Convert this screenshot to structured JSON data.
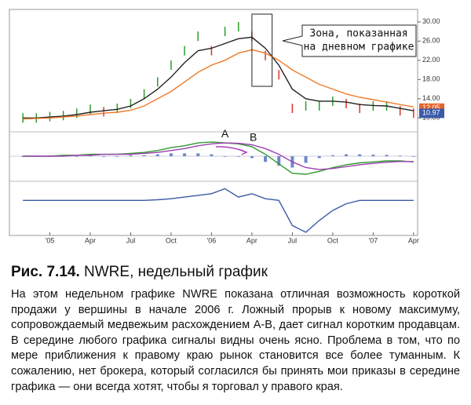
{
  "chart_data": [
    {
      "type": "line",
      "xlim": [
        -3,
        27.3
      ],
      "ylim": [
        7.6,
        32.1
      ],
      "xticks": [
        {
          "value": 0,
          "label": "'05"
        },
        {
          "value": 3,
          "label": "Apr"
        },
        {
          "value": 6,
          "label": "Jul"
        },
        {
          "value": 9,
          "label": "Oct"
        },
        {
          "value": 12,
          "label": "'06"
        },
        {
          "value": 15,
          "label": "Apr"
        },
        {
          "value": 18,
          "label": "Jul"
        },
        {
          "value": 21,
          "label": "Oct"
        },
        {
          "value": 24,
          "label": "'07"
        },
        {
          "value": 27,
          "label": "Apr"
        }
      ],
      "yticks": [
        {
          "value": 10,
          "label": "10.00"
        },
        {
          "value": 14,
          "label": "14.00"
        },
        {
          "value": 18,
          "label": "18.00"
        },
        {
          "value": 22,
          "label": "22.00"
        },
        {
          "value": 26,
          "label": "26.00"
        },
        {
          "value": 30,
          "label": "30.00"
        }
      ],
      "x": [
        -2,
        -1,
        0,
        1,
        2,
        3,
        4,
        5,
        6,
        7,
        8,
        9,
        10,
        11,
        12,
        13,
        14,
        15,
        16,
        17,
        18,
        19,
        20,
        21,
        22,
        23,
        24,
        25,
        26,
        27
      ],
      "series": [
        {
          "color": "#2e9a2e",
          "down_color": "#d8322a",
          "marker": "tick",
          "values": [
            10,
            10,
            10.3,
            10.5,
            11,
            11.8,
            11.3,
            12,
            13,
            15,
            17.5,
            21,
            24,
            27,
            24,
            28,
            29,
            27,
            23,
            19,
            12,
            12.5,
            12.5,
            13.5,
            13,
            12,
            12.5,
            12.5,
            11.5,
            11
          ]
        },
        {
          "color": "#222222",
          "values": [
            10,
            10,
            10.2,
            10.4,
            10.7,
            11.2,
            11.5,
            11.8,
            12.5,
            14,
            16,
            18.5,
            21.5,
            24,
            24.5,
            25.5,
            26.5,
            26.8,
            24.5,
            21,
            16,
            14,
            13.5,
            13.5,
            13.3,
            12.8,
            12.6,
            12.5,
            12,
            11.5
          ]
        },
        {
          "color": "#f07a2a",
          "values": [
            9.8,
            9.9,
            10,
            10.2,
            10.4,
            10.7,
            11,
            11.2,
            11.6,
            12.5,
            14,
            15.5,
            17.5,
            19.5,
            21,
            22,
            23.5,
            24.2,
            23.5,
            22,
            20,
            18.5,
            17,
            16,
            15,
            14.3,
            13.8,
            13.3,
            12.8,
            12.3
          ]
        }
      ],
      "price_tags": [
        {
          "value": 12.05,
          "color": "#e8642c"
        },
        {
          "value": 10.97,
          "color": "#3b5aa8"
        }
      ],
      "annotation": [
        "Зона, показанная",
        "на дневном графике"
      ],
      "zone": [
        15,
        16.5
      ]
    },
    {
      "type": "line",
      "xlim": [
        -3,
        27.3
      ],
      "ylim": [
        -1.2,
        1.2
      ],
      "x": [
        -2,
        -1,
        0,
        1,
        2,
        3,
        4,
        5,
        6,
        7,
        8,
        9,
        10,
        11,
        12,
        13,
        14,
        15,
        16,
        17,
        18,
        19,
        20,
        21,
        22,
        23,
        24,
        25,
        26,
        27
      ],
      "series": [
        {
          "color": "#2e9a2e",
          "values": [
            0,
            0,
            0,
            0.05,
            0.05,
            0.1,
            0.1,
            0.1,
            0.15,
            0.2,
            0.3,
            0.45,
            0.55,
            0.7,
            0.75,
            0.7,
            0.65,
            0.5,
            0.1,
            -0.4,
            -0.9,
            -0.95,
            -0.8,
            -0.6,
            -0.45,
            -0.35,
            -0.3,
            -0.25,
            -0.25,
            -0.3
          ]
        },
        {
          "color": "#9b3fb0",
          "values": [
            0,
            0,
            0,
            0,
            0.05,
            0.05,
            0.1,
            0.1,
            0.1,
            0.15,
            0.2,
            0.3,
            0.4,
            0.55,
            0.65,
            0.7,
            0.68,
            0.6,
            0.4,
            0.1,
            -0.3,
            -0.6,
            -0.7,
            -0.65,
            -0.55,
            -0.45,
            -0.38,
            -0.32,
            -0.28,
            -0.28
          ]
        }
      ],
      "histogram": {
        "color": "#6f86c9",
        "values": [
          0,
          0,
          0,
          0.05,
          0,
          0.05,
          0,
          0,
          0.05,
          0.05,
          0.1,
          0.15,
          0.15,
          0.15,
          0.1,
          0,
          -0.03,
          -0.1,
          -0.3,
          -0.5,
          -0.6,
          -0.35,
          -0.1,
          0.05,
          0.1,
          0.1,
          0.08,
          0.07,
          0.03,
          -0.02
        ]
      },
      "labels": [
        {
          "text": "A",
          "x": 13,
          "y": 1.15
        },
        {
          "text": "B",
          "x": 15.1,
          "y": 0.95
        }
      ]
    },
    {
      "type": "line",
      "xlim": [
        -3,
        27.3
      ],
      "ylim": [
        -1,
        0.5
      ],
      "x": [
        -2,
        -1,
        0,
        1,
        2,
        3,
        4,
        5,
        6,
        7,
        8,
        9,
        10,
        11,
        12,
        13,
        14,
        15,
        16,
        17,
        18,
        19,
        20,
        21,
        22,
        23,
        24,
        25,
        26,
        27
      ],
      "series": [
        {
          "color": "#3b5aa8",
          "values": [
            0,
            0,
            0,
            0,
            0,
            0,
            0,
            0,
            0,
            0,
            0.02,
            0.05,
            0.1,
            0.15,
            0.2,
            0.35,
            0.1,
            0.2,
            0.05,
            0,
            -0.75,
            -0.95,
            -0.6,
            -0.3,
            -0.1,
            0,
            0,
            0,
            0,
            0
          ]
        }
      ]
    }
  ],
  "caption": {
    "label": "Рис. 7.14.",
    "text": "NWRE, недельный график"
  },
  "body": "На этом недельном графике NWRE показана отличная возможность короткой продажи у вершины в начале 2006 г. Ложный прорыв к новому максимуму, сопровождаемый медвежьим расхождением А-В, дает сигнал коротким продавцам. В середине любого графика сигналы видны очень ясно. Проблема в том, что по мере приближения к правому краю рынок становится все более туманным. К сожалению, нет брокера, который согласился бы принять мои приказы в середине графика — они всегда хотят, чтобы я торговал у правого края."
}
